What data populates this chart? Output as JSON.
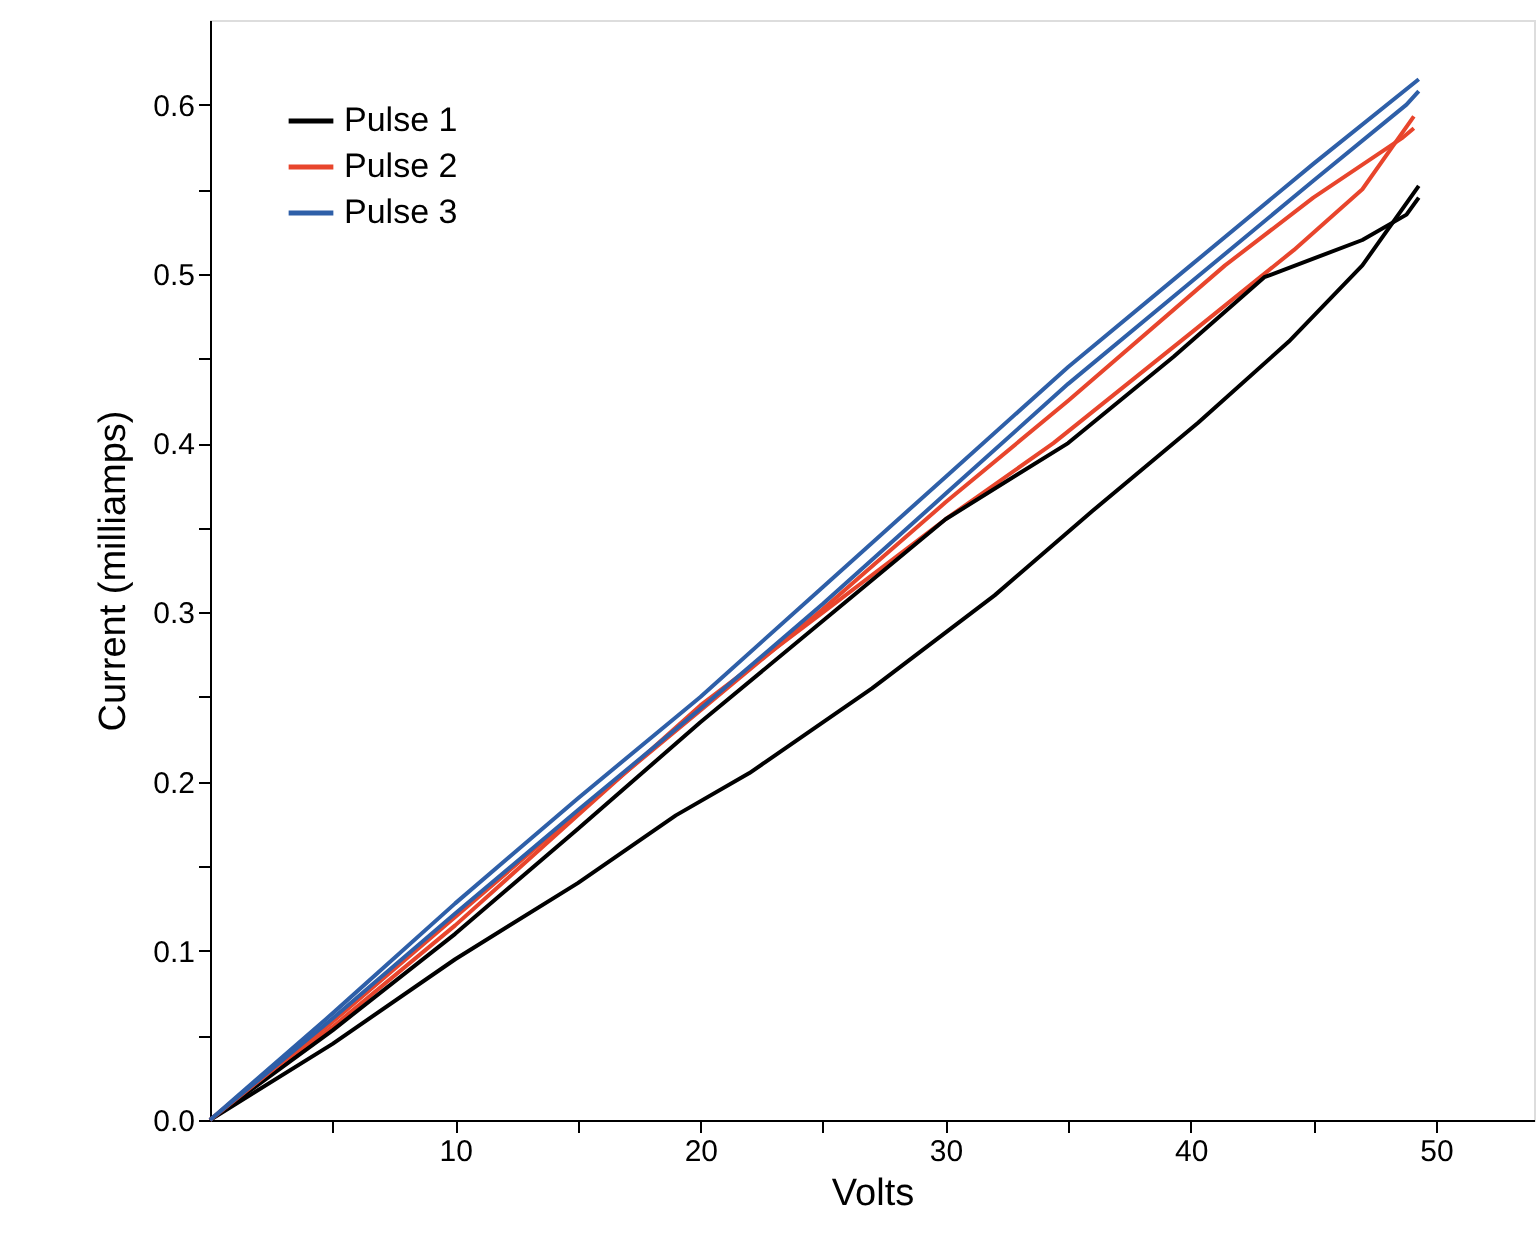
{
  "chart_data": {
    "type": "line",
    "xlabel": "Volts",
    "ylabel": "Current (milliamps)",
    "xlim": [
      0,
      54
    ],
    "ylim": [
      0,
      0.65
    ],
    "xticks": [
      {
        "value": 5,
        "label": null
      },
      10,
      {
        "value": 15,
        "label": null
      },
      20,
      {
        "value": 25,
        "label": null
      },
      30,
      {
        "value": 35,
        "label": null
      },
      40,
      {
        "value": 45,
        "label": null
      },
      50
    ],
    "yticks": [
      {
        "value": 0,
        "label": "0.0"
      },
      {
        "value": 0.05,
        "label": null
      },
      0.1,
      {
        "value": 0.15,
        "label": null
      },
      0.2,
      {
        "value": 0.25,
        "label": null
      },
      0.3,
      {
        "value": 0.35,
        "label": null
      },
      0.4,
      {
        "value": 0.45,
        "label": null
      },
      0.5,
      {
        "value": 0.55,
        "label": null
      },
      0.6
    ],
    "legend": "top left",
    "series": [
      {
        "name": "Pulse 1",
        "color": "#000000",
        "x": [
          0,
          5,
          10,
          15,
          19,
          22,
          27,
          32,
          36,
          40.3,
          44,
          47,
          49.3
        ],
        "values": [
          0,
          0.045,
          0.095,
          0.14,
          0.18,
          0.205,
          0.255,
          0.31,
          0.36,
          0.412,
          0.46,
          0.505,
          0.552
        ]
      },
      {
        "color": "#000000",
        "x": [
          49.3,
          48.8,
          47,
          43,
          39.3,
          35,
          30,
          25,
          20,
          15,
          10,
          5,
          0
        ],
        "values": [
          0.545,
          0.535,
          0.52,
          0.498,
          0.451,
          0.4,
          0.355,
          0.295,
          0.235,
          0.172,
          0.11,
          0.053,
          0
        ]
      },
      {
        "name": "Pulse 2",
        "color": "#e8452c",
        "x": [
          0,
          5,
          10,
          15,
          20,
          25,
          30,
          34.4,
          40,
          44.2,
          47,
          49.1
        ],
        "values": [
          0,
          0.055,
          0.115,
          0.18,
          0.245,
          0.3,
          0.355,
          0.4,
          0.465,
          0.514,
          0.55,
          0.593
        ]
      },
      {
        "color": "#e8452c",
        "x": [
          49.1,
          48.6,
          45,
          41.4,
          35,
          30,
          25,
          20,
          15,
          10,
          5,
          0
        ],
        "values": [
          0.586,
          0.58,
          0.545,
          0.505,
          0.425,
          0.365,
          0.302,
          0.242,
          0.182,
          0.12,
          0.058,
          0
        ]
      },
      {
        "name": "Pulse 3",
        "color": "#2e5fa8",
        "x": [
          0,
          5,
          10,
          15,
          20,
          25,
          30,
          35,
          40,
          45,
          49.3
        ],
        "values": [
          0,
          0.063,
          0.128,
          0.19,
          0.25,
          0.315,
          0.38,
          0.445,
          0.505,
          0.565,
          0.615
        ]
      },
      {
        "color": "#2e5fa8",
        "x": [
          49.3,
          48.8,
          45,
          40,
          35,
          30,
          25,
          20,
          15,
          10,
          5,
          0
        ],
        "values": [
          0.608,
          0.6,
          0.555,
          0.495,
          0.435,
          0.37,
          0.305,
          0.243,
          0.183,
          0.122,
          0.06,
          0
        ]
      }
    ]
  }
}
